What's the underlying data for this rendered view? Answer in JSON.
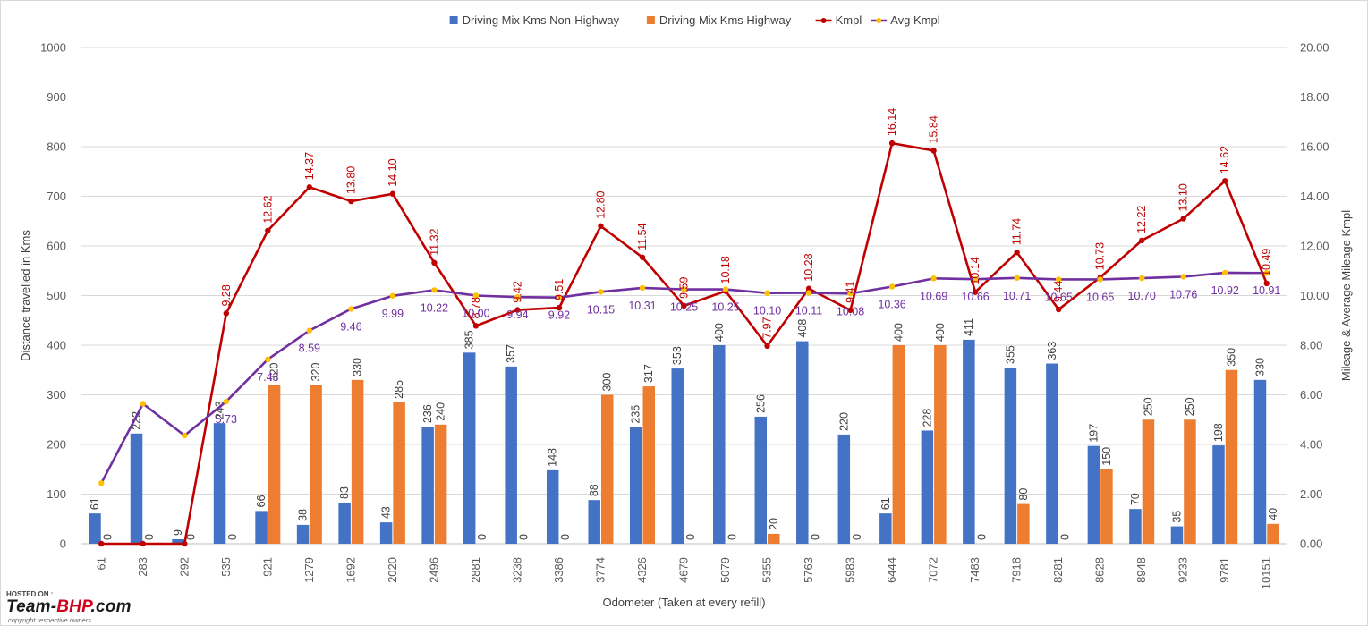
{
  "chart_data": {
    "type": "bar",
    "xlabel": "Odometer (Taken at every refill)",
    "ylabel": "Distance travelled in Kms",
    "y2label": "Mileage & Average Mileage Kmpl",
    "ylim": [
      0,
      1000
    ],
    "y2lim": [
      0,
      20
    ],
    "grid": true,
    "legend_position": "top",
    "yticks": [
      "0",
      "100",
      "200",
      "300",
      "400",
      "500",
      "600",
      "700",
      "800",
      "900",
      "1000"
    ],
    "y2ticks": [
      "0.00",
      "2.00",
      "4.00",
      "6.00",
      "8.00",
      "10.00",
      "12.00",
      "14.00",
      "16.00",
      "18.00",
      "20.00"
    ],
    "categories": [
      "61",
      "283",
      "292",
      "535",
      "921",
      "1279",
      "1692",
      "2020",
      "2496",
      "2881",
      "3238",
      "3386",
      "3774",
      "4326",
      "4679",
      "5079",
      "5355",
      "5763",
      "5983",
      "6444",
      "7072",
      "7483",
      "7918",
      "8281",
      "8628",
      "8948",
      "9233",
      "9781",
      "10151"
    ],
    "series": [
      {
        "name": "Driving Mix Kms Non-Highway",
        "kind": "bar",
        "axis": "left",
        "color": "#4472c4",
        "values": [
          61,
          222,
          9,
          243,
          66,
          38,
          83,
          43,
          236,
          385,
          357,
          148,
          88,
          235,
          353,
          400,
          256,
          408,
          220,
          61,
          228,
          411,
          355,
          363,
          197,
          70,
          35,
          198,
          330
        ],
        "labels": [
          "61",
          "222",
          "9",
          "243",
          "66",
          "38",
          "83",
          "43",
          "236",
          "385",
          "357",
          "148",
          "88",
          "235",
          "353",
          "400",
          "256",
          "408",
          "220",
          "61",
          "228",
          "411",
          "355",
          "363",
          "197",
          "70",
          "35",
          "198",
          "330"
        ]
      },
      {
        "name": "Driving Mix Kms Highway",
        "kind": "bar",
        "axis": "left",
        "color": "#ed7d31",
        "values": [
          0,
          0,
          0,
          0,
          320,
          320,
          330,
          285,
          240,
          0,
          0,
          0,
          300,
          317,
          0,
          0,
          20,
          0,
          0,
          400,
          400,
          0,
          80,
          0,
          150,
          250,
          250,
          350,
          40
        ],
        "labels": [
          "0",
          "0",
          "0",
          "0",
          "320",
          "320",
          "330",
          "285",
          "240",
          "0",
          "0",
          "0",
          "300",
          "317",
          "0",
          "0",
          "20",
          "0",
          "0",
          "400",
          "400",
          "0",
          "80",
          "0",
          "150",
          "250",
          "250",
          "350",
          "40"
        ]
      },
      {
        "name": "Kmpl",
        "kind": "line",
        "axis": "right",
        "color": "#c00000",
        "values": [
          0,
          0,
          0,
          9.28,
          12.62,
          14.37,
          13.8,
          14.1,
          11.32,
          8.78,
          9.42,
          9.51,
          12.8,
          11.54,
          9.59,
          10.18,
          7.97,
          10.28,
          9.41,
          16.14,
          15.84,
          10.14,
          11.74,
          9.44,
          10.73,
          12.22,
          13.1,
          14.62,
          10.49
        ],
        "labels": [
          "",
          "",
          "",
          "9.28",
          "12.62",
          "14.37",
          "13.80",
          "14.10",
          "11.32",
          "8.78",
          "9.42",
          "9.51",
          "12.80",
          "11.54",
          "9.59",
          "10.18",
          "7.97",
          "10.28",
          "9.41",
          "16.14",
          "15.84",
          "10.14",
          "11.74",
          "9.44",
          "10.73",
          "12.22",
          "13.10",
          "14.62",
          "10.49"
        ]
      },
      {
        "name": "Avg Kmpl",
        "kind": "line",
        "axis": "right",
        "color": "#7030a0",
        "marker_color": "#ffc000",
        "values": [
          2.44,
          5.64,
          4.36,
          5.73,
          7.43,
          8.59,
          9.46,
          9.99,
          10.22,
          10.0,
          9.94,
          9.92,
          10.15,
          10.31,
          10.25,
          10.25,
          10.1,
          10.11,
          10.08,
          10.36,
          10.69,
          10.66,
          10.71,
          10.65,
          10.65,
          10.7,
          10.76,
          10.92,
          10.91
        ],
        "labels": [
          "",
          "",
          "",
          "5.73",
          "7.43",
          "8.59",
          "9.46",
          "9.99",
          "10.22",
          "10.00",
          "9.94",
          "9.92",
          "10.15",
          "10.31",
          "10.25",
          "10.25",
          "10.10",
          "10.11",
          "10.08",
          "10.36",
          "10.69",
          "10.66",
          "10.71",
          "10.65",
          "10.65",
          "10.70",
          "10.76",
          "10.92",
          "10.91"
        ]
      }
    ]
  },
  "watermark": {
    "hosted_on": "HOSTED ON :",
    "brand_team": "Team-",
    "brand_bhp": "BHP",
    "brand_suffix": ".com",
    "copyright": "copyright respective owners"
  }
}
